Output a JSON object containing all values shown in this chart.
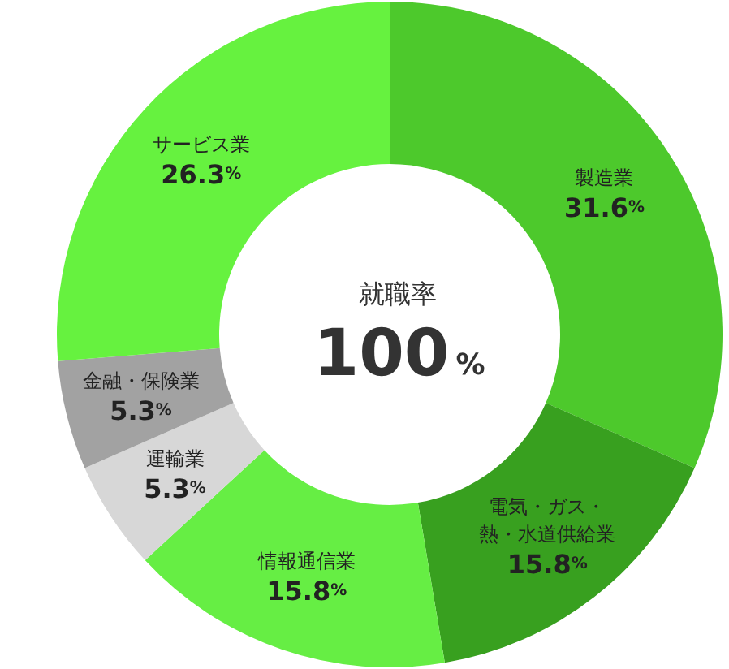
{
  "chart_data": {
    "type": "donut",
    "title": "就職率",
    "annotations": [
      "100%"
    ],
    "categories": [
      "製造業",
      "電気・ガス・熱・水道供給業",
      "情報通信業",
      "運輸業",
      "金融・保険業",
      "サービス業"
    ],
    "values": [
      31.6,
      15.8,
      15.8,
      5.3,
      5.3,
      26.3
    ],
    "value_labels": [
      "31.6%",
      "15.8%",
      "15.8%",
      "5.3%",
      "5.3%",
      "26.3%"
    ],
    "colors": [
      "#4dc92c",
      "#38a01f",
      "#66ee44",
      "#d7d7d7",
      "#a2a2a2",
      "#66f23f"
    ],
    "legend": false
  }
}
